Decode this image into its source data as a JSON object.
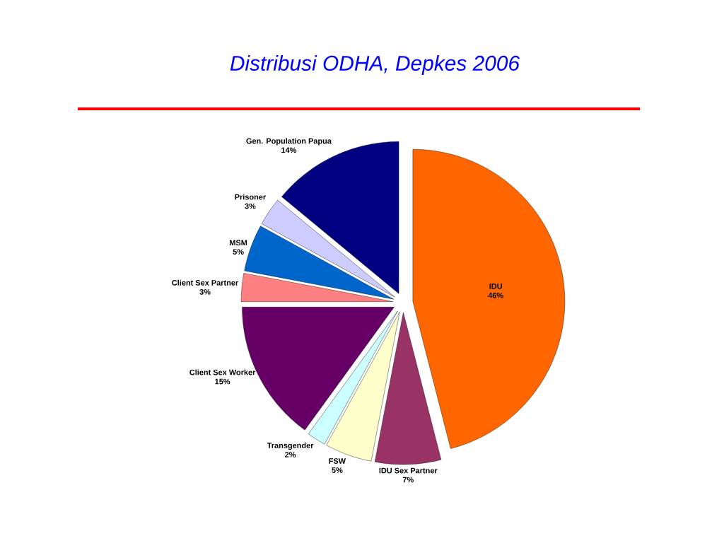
{
  "chart_data": {
    "type": "pie",
    "title": "Distribusi ODHA, Depkes 2006",
    "categories": [
      "IDU",
      "IDU Sex Partner",
      "FSW",
      "Transgender",
      "Client Sex Worker",
      "Client Sex Partner",
      "MSM",
      "Prisoner",
      "Gen. Population Papua"
    ],
    "values": [
      46,
      7,
      5,
      2,
      15,
      3,
      5,
      3,
      14
    ],
    "colors": [
      "#ff6600",
      "#993366",
      "#ffffcc",
      "#ccffff",
      "#660066",
      "#ff8080",
      "#0066cc",
      "#ccccff",
      "#000080"
    ],
    "value_labels": [
      "46%",
      "7%",
      "5%",
      "2%",
      "15%",
      "3%",
      "5%",
      "3%",
      "14%"
    ]
  }
}
